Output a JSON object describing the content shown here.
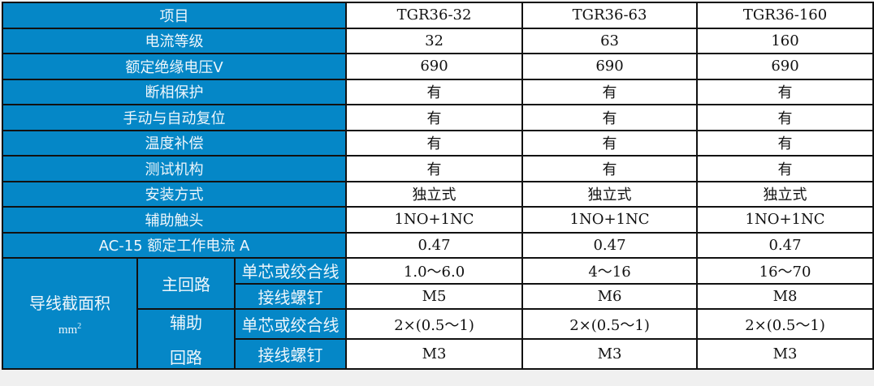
{
  "header": {
    "label": "项目",
    "models": [
      "TGR36-32",
      "TGR36-63",
      "TGR36-160"
    ]
  },
  "rows": [
    {
      "label": "电流等级",
      "values": [
        "32",
        "63",
        "160"
      ]
    },
    {
      "label": "额定绝缘电压V",
      "values": [
        "690",
        "690",
        "690"
      ]
    },
    {
      "label": "断相保护",
      "values": [
        "有",
        "有",
        "有"
      ]
    },
    {
      "label": "手动与自动复位",
      "values": [
        "有",
        "有",
        "有"
      ]
    },
    {
      "label": "温度补偿",
      "values": [
        "有",
        "有",
        "有"
      ]
    },
    {
      "label": "测试机构",
      "values": [
        "有",
        "有",
        "有"
      ]
    },
    {
      "label": "安装方式",
      "values": [
        "独立式",
        "独立式",
        "独立式"
      ]
    },
    {
      "label": "辅助触头",
      "values": [
        "1NO+1NC",
        "1NO+1NC",
        "1NO+1NC"
      ]
    },
    {
      "label": "AC-15 额定工作电流 A",
      "values": [
        "0.47",
        "0.47",
        "0.47"
      ]
    }
  ],
  "wire": {
    "label": "导线截面积",
    "unit": "mm",
    "unit_sup": "2",
    "main": {
      "label": "主回路",
      "rows": [
        {
          "label": "单芯或绞合线",
          "values": [
            "1.0～6.0",
            "4～16",
            "16～70"
          ]
        },
        {
          "label": "接线螺钉",
          "values": [
            "M5",
            "M6",
            "M8"
          ]
        }
      ]
    },
    "aux": {
      "label_line1": "辅助",
      "label_line2": "回路",
      "rows": [
        {
          "label": "单芯或绞合线",
          "values": [
            "2×(0.5～1)",
            "2×(0.5～1)",
            "2×(0.5～1)"
          ]
        },
        {
          "label": "接线螺钉",
          "values": [
            "M3",
            "M3",
            "M3"
          ]
        }
      ]
    }
  },
  "colors": {
    "header_bg": "#0587c7",
    "border": "#111111"
  }
}
